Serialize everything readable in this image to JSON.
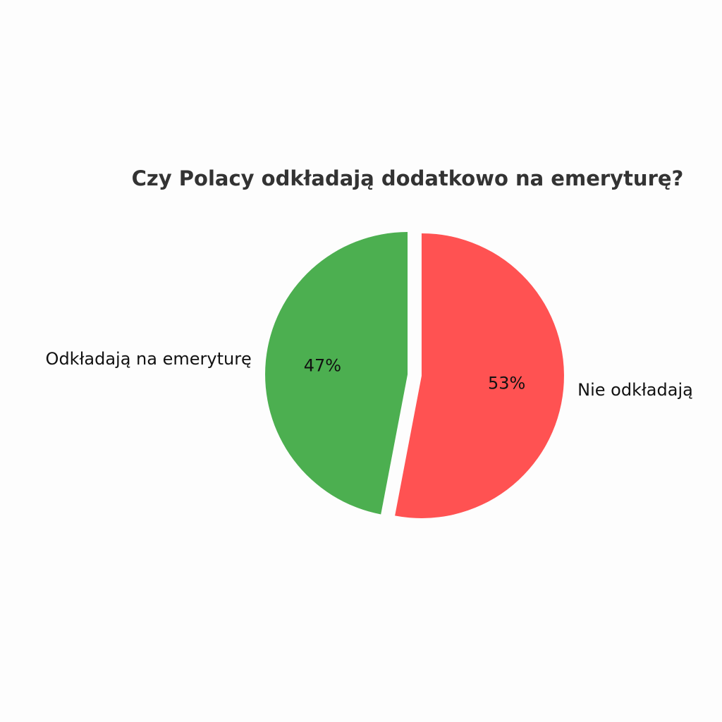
{
  "chart_data": {
    "type": "pie",
    "title": "Czy Polacy odkładają dodatkowo na emeryturę?",
    "categories": [
      "Odkładają na emeryturę",
      "Nie odkładają"
    ],
    "values": [
      47,
      53
    ],
    "value_labels": [
      "47%",
      "53%"
    ],
    "colors": [
      "#4caf50",
      "#ff5252"
    ]
  }
}
